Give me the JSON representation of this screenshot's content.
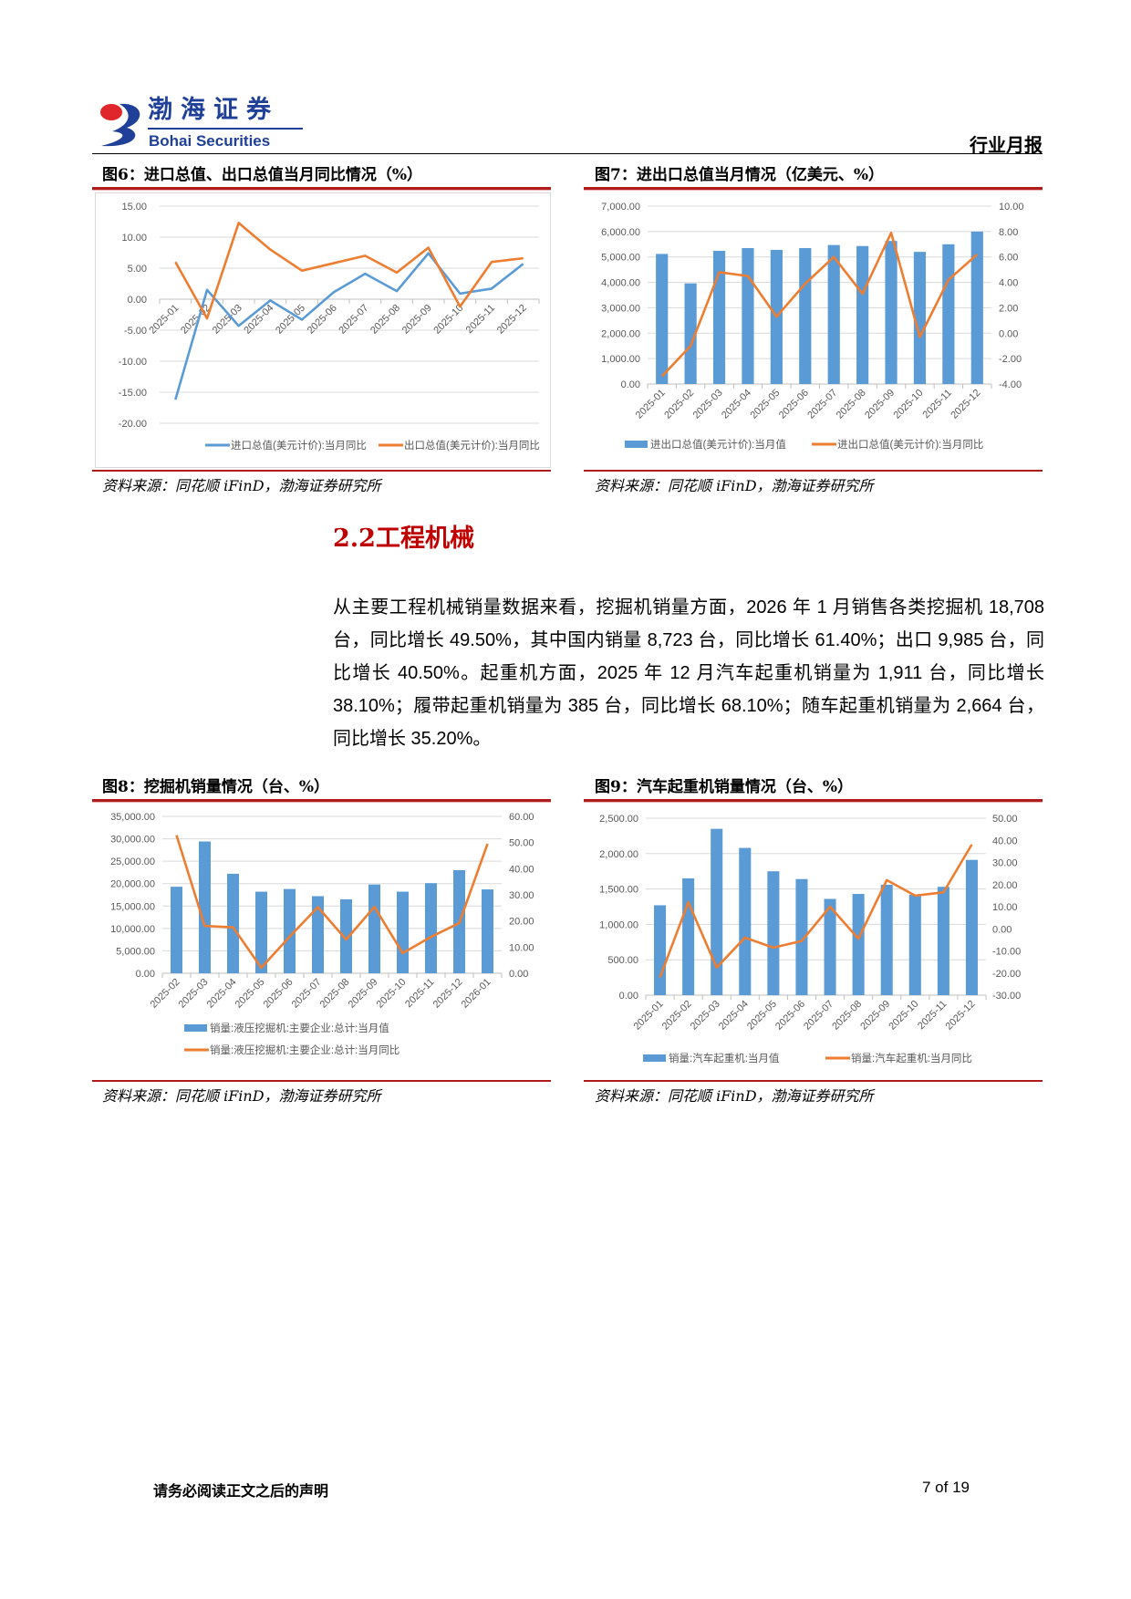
{
  "header": {
    "logo_cn": "渤海证券",
    "logo_en": "Bohai Securities",
    "report_type": "行业月报"
  },
  "colors": {
    "brand_blue": "#1f3f99",
    "accent_red": "#b01c1c",
    "bar_blue": "#5b9bd5",
    "line_orange": "#ed7d31"
  },
  "section": {
    "title": "2.2工程机械"
  },
  "paragraph": "从主要工程机械销量数据来看，挖掘机销量方面，2026 年 1 月销售各类挖掘机 18,708 台，同比增长 49.50%，其中国内销量 8,723 台，同比增长 61.40%；出口 9,985 台，同比增长 40.50%。起重机方面，2025 年 12 月汽车起重机销量为 1,911 台，同比增长 38.10%；履带起重机销量为 385 台，同比增长 68.10%；随车起重机销量为 2,664 台，同比增长 35.20%。",
  "figures": [
    {
      "title": "图6：进口总值、出口总值当月同比情况（%）",
      "source": "资料来源：同花顺 iFinD，渤海证券研究所"
    },
    {
      "title": "图7：进出口总值当月情况（亿美元、%）",
      "source": "资料来源：同花顺 iFinD，渤海证券研究所"
    },
    {
      "title": "图8：挖掘机销量情况（台、%）",
      "source": "资料来源：同花顺 iFinD，渤海证券研究所"
    },
    {
      "title": "图9：汽车起重机销量情况（台、%）",
      "source": "资料来源：同花顺 iFinD，渤海证券研究所"
    }
  ],
  "chart_data": [
    {
      "type": "line",
      "categories": [
        "2025-01",
        "2025-02",
        "2025-03",
        "2025-04",
        "2025-05",
        "2025-06",
        "2025-07",
        "2025-08",
        "2025-09",
        "2025-10",
        "2025-11",
        "2025-12"
      ],
      "ylim": [
        -20,
        15
      ],
      "yticks": [
        "15.00",
        "10.00",
        "5.00",
        "0.00",
        "-5.00",
        "-10.00",
        "-15.00",
        "-20.00"
      ],
      "grid": true,
      "legend": "bottom",
      "series": [
        {
          "name": "进口总值(美元计价):当月同比",
          "type": "line",
          "axis": "left",
          "color": "#5b9bd5",
          "values": [
            -16.2,
            1.5,
            -4.3,
            -0.2,
            -3.3,
            1.1,
            4.1,
            1.3,
            7.4,
            0.9,
            1.7,
            5.7
          ]
        },
        {
          "name": "出口总值(美元计价):当月同比",
          "type": "line",
          "axis": "left",
          "color": "#ed7d31",
          "values": [
            6.0,
            -3.1,
            12.3,
            8.0,
            4.6,
            5.8,
            7.0,
            4.3,
            8.3,
            -1.2,
            6.0,
            6.6
          ]
        }
      ]
    },
    {
      "type": "bar+line",
      "categories": [
        "2025-01",
        "2025-02",
        "2025-03",
        "2025-04",
        "2025-05",
        "2025-06",
        "2025-07",
        "2025-08",
        "2025-09",
        "2025-10",
        "2025-11",
        "2025-12"
      ],
      "ylim": [
        0,
        7000
      ],
      "yticks": [
        "7,000.00",
        "6,000.00",
        "5,000.00",
        "4,000.00",
        "3,000.00",
        "2,000.00",
        "1,000.00",
        "0.00"
      ],
      "y2lim": [
        -4,
        10
      ],
      "y2ticks": [
        "10.00",
        "8.00",
        "6.00",
        "4.00",
        "2.00",
        "0.00",
        "-2.00",
        "-4.00"
      ],
      "grid": true,
      "legend": "bottom",
      "series": [
        {
          "name": "进出口总值(美元计价):当月值",
          "type": "bar",
          "axis": "left",
          "color": "#5b9bd5",
          "values": [
            5120,
            3960,
            5240,
            5350,
            5280,
            5350,
            5470,
            5430,
            5630,
            5200,
            5500,
            6000
          ]
        },
        {
          "name": "进出口总值(美元计价):当月同比",
          "type": "line",
          "axis": "right",
          "color": "#ed7d31",
          "values": [
            -3.4,
            -1.0,
            4.8,
            4.5,
            1.3,
            3.9,
            6.0,
            3.1,
            7.9,
            -0.3,
            4.2,
            6.2
          ]
        }
      ]
    },
    {
      "type": "bar+line",
      "categories": [
        "2025-02",
        "2025-03",
        "2025-04",
        "2025-05",
        "2025-06",
        "2025-07",
        "2025-08",
        "2025-09",
        "2025-10",
        "2025-11",
        "2025-12",
        "2026-01"
      ],
      "ylim": [
        0,
        35000
      ],
      "yticks": [
        "35,000.00",
        "30,000.00",
        "25,000.00",
        "20,000.00",
        "15,000.00",
        "10,000.00",
        "5,000.00",
        "0.00"
      ],
      "y2lim": [
        0,
        60
      ],
      "y2ticks": [
        "60.00",
        "50.00",
        "40.00",
        "30.00",
        "20.00",
        "10.00",
        "0.00"
      ],
      "grid": true,
      "legend": "bottom",
      "series": [
        {
          "name": "销量:液压挖掘机:主要企业:总计:当月值",
          "type": "bar",
          "axis": "left",
          "color": "#5b9bd5",
          "values": [
            19300,
            29400,
            22200,
            18200,
            18800,
            17200,
            16500,
            19800,
            18200,
            20100,
            23000,
            18708
          ]
        },
        {
          "name": "销量:液压挖掘机:主要企业:总计:当月同比",
          "type": "line",
          "axis": "right",
          "color": "#ed7d31",
          "values": [
            52.8,
            18.1,
            17.6,
            2.1,
            14.0,
            25.3,
            12.9,
            25.4,
            7.7,
            13.9,
            19.2,
            49.5
          ]
        }
      ]
    },
    {
      "type": "bar+line",
      "categories": [
        "2025-01",
        "2025-02",
        "2025-03",
        "2025-04",
        "2025-05",
        "2025-06",
        "2025-07",
        "2025-08",
        "2025-09",
        "2025-10",
        "2025-11",
        "2025-12"
      ],
      "ylim": [
        0,
        2500
      ],
      "yticks": [
        "2,500.00",
        "2,000.00",
        "1,500.00",
        "1,000.00",
        "500.00",
        "0.00"
      ],
      "y2lim": [
        -30,
        50
      ],
      "y2ticks": [
        "50.00",
        "40.00",
        "30.00",
        "20.00",
        "10.00",
        "0.00",
        "-10.00",
        "-20.00",
        "-30.00"
      ],
      "grid": true,
      "legend": "bottom",
      "series": [
        {
          "name": "销量:汽车起重机:当月值",
          "type": "bar",
          "axis": "left",
          "color": "#5b9bd5",
          "values": [
            1270,
            1650,
            2350,
            2080,
            1750,
            1640,
            1360,
            1430,
            1560,
            1420,
            1530,
            1911
          ]
        },
        {
          "name": "销量:汽车起重机:当月同比",
          "type": "line",
          "axis": "right",
          "color": "#ed7d31",
          "values": [
            -22.0,
            12.0,
            -17.5,
            -4.0,
            -8.5,
            -5.5,
            10.0,
            -4.5,
            22.0,
            15.0,
            16.5,
            38.1
          ]
        }
      ]
    }
  ],
  "footer": {
    "disclaimer": "请务必阅读正文之后的声明",
    "page": "7 of 19"
  }
}
